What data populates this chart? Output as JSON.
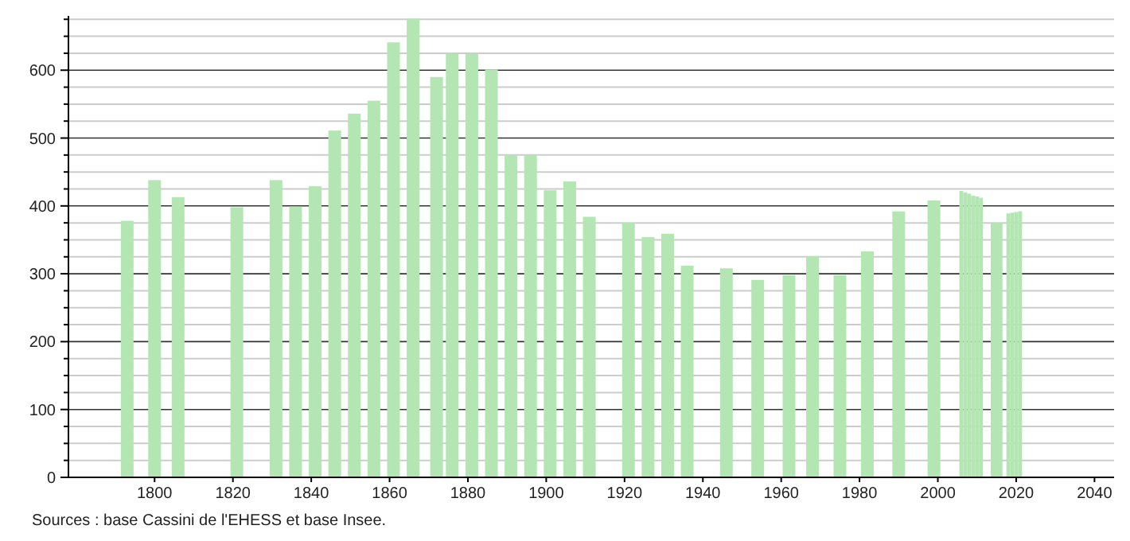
{
  "chart_data": {
    "type": "bar",
    "x": [
      1793,
      1800,
      1806,
      1821,
      1831,
      1836,
      1841,
      1846,
      1851,
      1856,
      1861,
      1866,
      1872,
      1876,
      1881,
      1886,
      1891,
      1896,
      1901,
      1906,
      1911,
      1921,
      1926,
      1931,
      1936,
      1946,
      1954,
      1962,
      1968,
      1975,
      1982,
      1990,
      1999,
      2006,
      2007,
      2008,
      2009,
      2010,
      2011,
      2015,
      2018,
      2019,
      2020,
      2021
    ],
    "values": [
      378,
      438,
      413,
      398,
      438,
      399,
      429,
      511,
      536,
      555,
      641,
      676,
      590,
      624,
      624,
      601,
      475,
      475,
      423,
      436,
      384,
      375,
      354,
      359,
      312,
      308,
      291,
      298,
      326,
      298,
      333,
      392,
      408,
      422,
      420,
      418,
      415,
      414,
      412,
      375,
      389,
      390,
      391,
      392
    ],
    "color": "#b3e6b3",
    "xlim": [
      1778,
      2045
    ],
    "xticks": [
      1800,
      1820,
      1840,
      1860,
      1880,
      1900,
      1920,
      1940,
      1960,
      1980,
      2000,
      2020,
      2040
    ],
    "ylim": [
      0,
      680
    ],
    "yticks": [
      0,
      {
        "value": 25,
        "label": null
      },
      {
        "value": 50,
        "label": null
      },
      {
        "value": 75,
        "label": null
      },
      100,
      {
        "value": 125,
        "label": null
      },
      {
        "value": 150,
        "label": null
      },
      {
        "value": 175,
        "label": null
      },
      200,
      {
        "value": 225,
        "label": null
      },
      {
        "value": 250,
        "label": null
      },
      {
        "value": 275,
        "label": null
      },
      300,
      {
        "value": 325,
        "label": null
      },
      {
        "value": 350,
        "label": null
      },
      {
        "value": 375,
        "label": null
      },
      400,
      {
        "value": 425,
        "label": null
      },
      {
        "value": 450,
        "label": null
      },
      {
        "value": 475,
        "label": null
      },
      500,
      {
        "value": 525,
        "label": null
      },
      {
        "value": 550,
        "label": null
      },
      {
        "value": 575,
        "label": null
      },
      600,
      {
        "value": 625,
        "label": null
      },
      {
        "value": 650,
        "label": null
      },
      {
        "value": 675,
        "label": null
      }
    ],
    "grid": "y",
    "annotations": [
      "Sources : base Cassini de l'EHESS et base Insee."
    ]
  }
}
